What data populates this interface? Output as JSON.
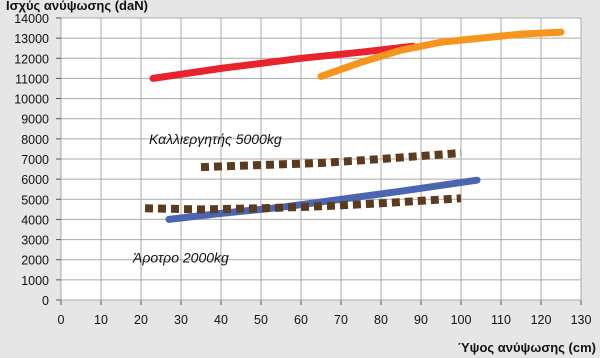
{
  "chart_data": {
    "type": "line",
    "ylabel": "Ισχύς ανύψωσης (daN)",
    "xlabel": "Ύψος ανύψωσης (cm)",
    "xlim": [
      0,
      130
    ],
    "ylim": [
      0,
      14000
    ],
    "x_ticks": [
      0,
      10,
      20,
      30,
      40,
      50,
      60,
      70,
      80,
      90,
      100,
      110,
      120,
      130
    ],
    "y_ticks": [
      0,
      1000,
      2000,
      3000,
      4000,
      5000,
      6000,
      7000,
      8000,
      9000,
      10000,
      11000,
      12000,
      13000,
      14000
    ],
    "grid": true,
    "background_color": "#e6e6e6",
    "plot_background_color": "#ffffff",
    "annotations": [
      {
        "text": "Καλλιεργητής 5000kg",
        "x": 22,
        "y": 8000
      },
      {
        "text": "Άροτρο 2000kg",
        "x": 18,
        "y": 2100
      }
    ],
    "series": [
      {
        "color": "#e8232d",
        "style": "solid",
        "x": [
          23,
          40,
          60,
          75,
          88
        ],
        "y": [
          11000,
          11500,
          12000,
          12300,
          12600
        ]
      },
      {
        "color": "#f7941d",
        "style": "solid",
        "x": [
          65,
          75,
          85,
          95,
          105,
          115,
          125
        ],
        "y": [
          11100,
          11800,
          12400,
          12800,
          13000,
          13200,
          13300
        ]
      },
      {
        "color": "#4a66b0",
        "style": "solid",
        "x": [
          27,
          40,
          55,
          70,
          85,
          104
        ],
        "y": [
          4000,
          4300,
          4600,
          5000,
          5400,
          5950
        ]
      },
      {
        "color": "#5c3a1e",
        "style": "dotted",
        "x": [
          35,
          50,
          65,
          80,
          100
        ],
        "y": [
          6600,
          6700,
          6800,
          7000,
          7300
        ]
      },
      {
        "color": "#5c3a1e",
        "style": "dotted",
        "x": [
          21,
          35,
          50,
          65,
          80,
          100
        ],
        "y": [
          4550,
          4500,
          4550,
          4650,
          4800,
          5050
        ]
      }
    ]
  }
}
